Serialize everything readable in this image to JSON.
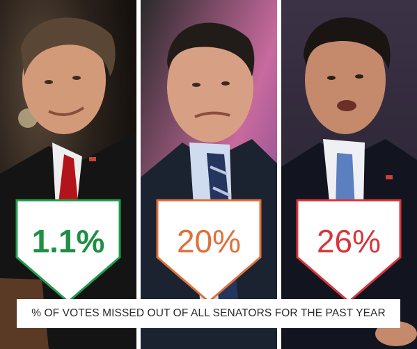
{
  "panels": [
    {
      "value": "1.1%",
      "color": "#1fa04a",
      "text_color": "#1f8f45"
    },
    {
      "value": "20%",
      "color": "#e0703a",
      "text_color": "#e0703a"
    },
    {
      "value": "26%",
      "color": "#d8353a",
      "text_color": "#d8353a"
    }
  ],
  "caption": "% OF VOTES MISSED OUT OF ALL SENATORS FOR THE PAST YEAR"
}
